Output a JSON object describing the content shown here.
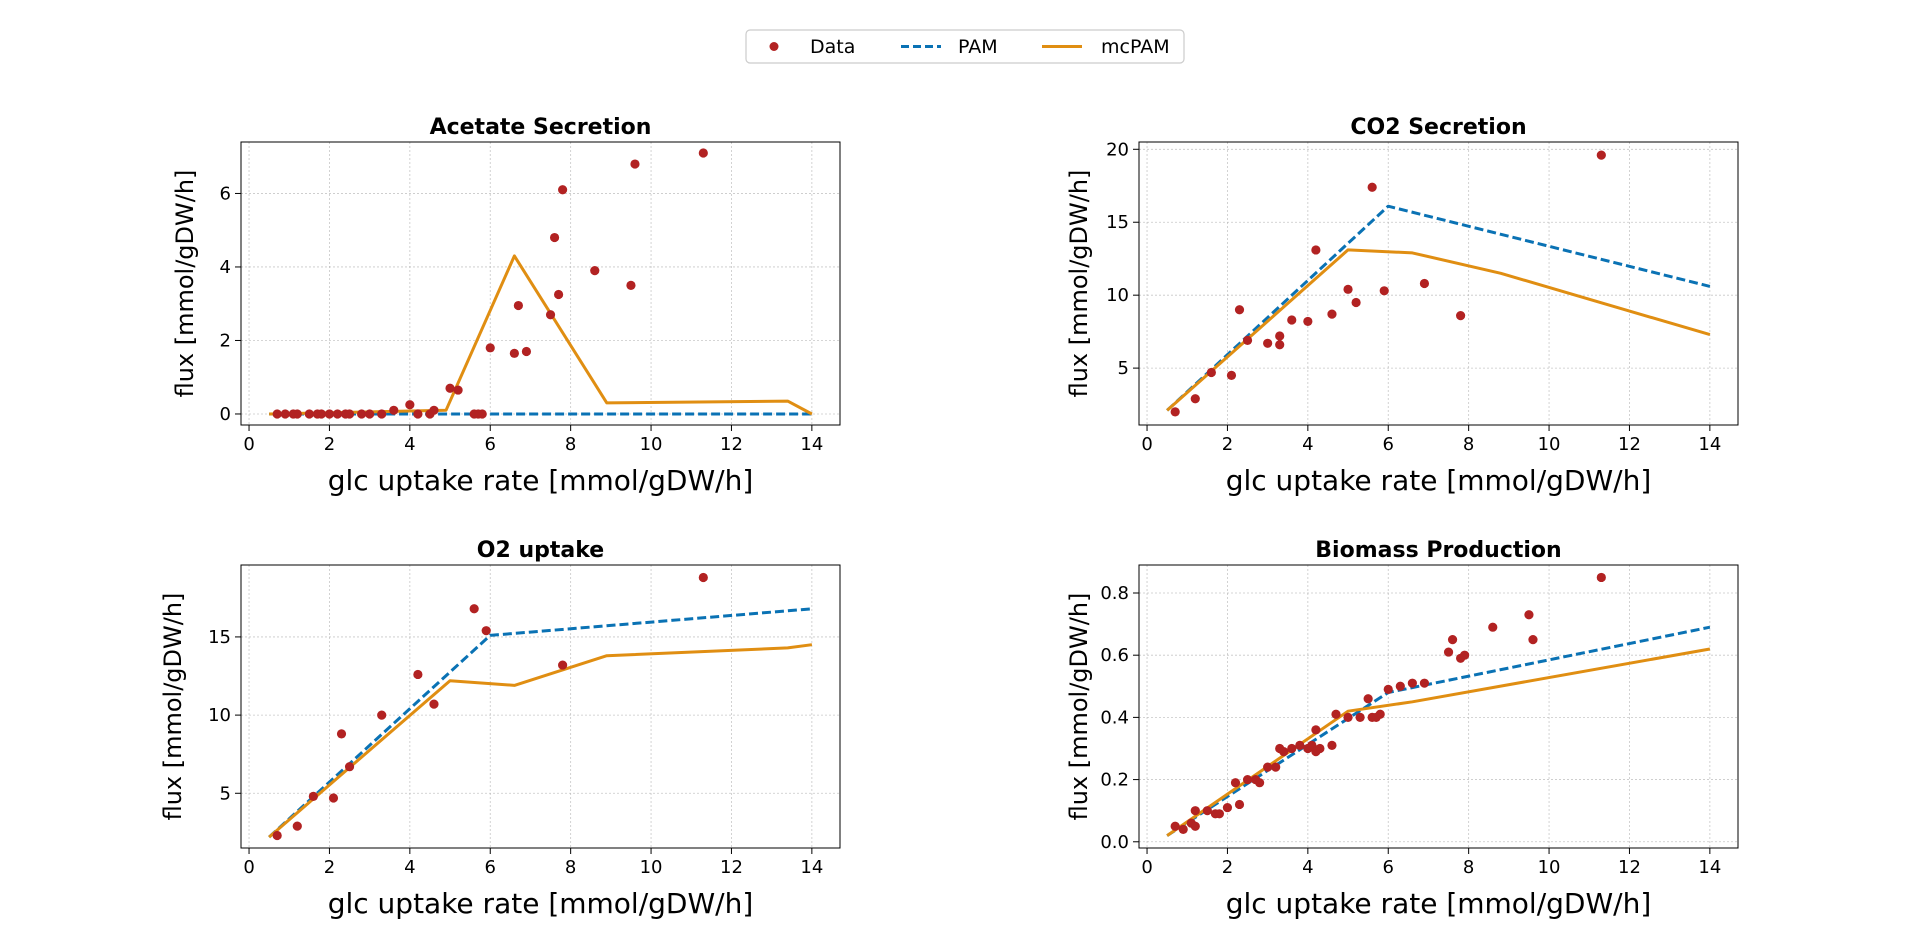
{
  "legend": {
    "entries": [
      {
        "label": "Data",
        "kind": "marker",
        "color": "#b22222"
      },
      {
        "label": "PAM",
        "kind": "dashed",
        "color": "#0a72b4"
      },
      {
        "label": "mcPAM",
        "kind": "solid",
        "color": "#e08e12"
      }
    ],
    "placement": "top-center"
  },
  "colors": {
    "data": "#b22222",
    "pam": "#0a72b4",
    "mcpam": "#e08e12"
  },
  "chart_data": [
    {
      "type": "line",
      "title": "Acetate Secretion",
      "xlabel": "glc uptake rate [mmol/gDW/h]",
      "ylabel": "flux [mmol/gDW/h]",
      "xlim": [
        -0.2,
        14.7
      ],
      "ylim": [
        -0.3,
        7.4
      ],
      "xticks": [
        0,
        2,
        4,
        6,
        8,
        10,
        12,
        14
      ],
      "yticks": [
        0,
        2,
        4,
        6
      ],
      "grid": true,
      "series": [
        {
          "name": "Data",
          "kind": "scatter",
          "x": [
            0.7,
            0.9,
            1.1,
            1.2,
            1.5,
            1.7,
            1.8,
            2.0,
            2.2,
            2.4,
            2.5,
            2.8,
            3.0,
            3.3,
            3.6,
            4.0,
            4.2,
            4.5,
            4.6,
            5.0,
            5.2,
            5.6,
            5.7,
            5.8,
            6.0,
            6.6,
            6.7,
            6.9,
            7.5,
            7.6,
            7.7,
            7.8,
            8.6,
            9.5,
            9.6,
            11.3
          ],
          "y": [
            0,
            0,
            0,
            0,
            0,
            0,
            0,
            0,
            0,
            0,
            0,
            0,
            0,
            0,
            0.1,
            0.25,
            0,
            0,
            0.1,
            0.7,
            0.65,
            0,
            0,
            0,
            1.8,
            1.65,
            2.95,
            1.7,
            2.7,
            4.8,
            3.25,
            6.1,
            3.9,
            3.5,
            6.8,
            7.1
          ]
        },
        {
          "name": "PAM",
          "kind": "dashed",
          "x": [
            0.5,
            14.0
          ],
          "y": [
            0,
            0
          ]
        },
        {
          "name": "mcPAM",
          "kind": "solid",
          "x": [
            0.5,
            4.9,
            6.6,
            8.9,
            13.4,
            14.0
          ],
          "y": [
            0,
            0.1,
            4.3,
            0.3,
            0.35,
            0
          ]
        }
      ]
    },
    {
      "type": "line",
      "title": "CO2 Secretion",
      "xlabel": "glc uptake rate [mmol/gDW/h]",
      "ylabel": "flux [mmol/gDW/h]",
      "xlim": [
        -0.2,
        14.7
      ],
      "ylim": [
        1.1,
        20.5
      ],
      "xticks": [
        0,
        2,
        4,
        6,
        8,
        10,
        12,
        14
      ],
      "yticks": [
        5,
        10,
        15,
        20
      ],
      "grid": true,
      "series": [
        {
          "name": "Data",
          "kind": "scatter",
          "x": [
            0.7,
            1.2,
            1.6,
            2.1,
            2.3,
            2.5,
            3.0,
            3.3,
            3.3,
            3.6,
            4.0,
            4.2,
            4.6,
            5.0,
            5.2,
            5.6,
            5.9,
            6.9,
            7.8,
            11.3
          ],
          "y": [
            2.0,
            2.9,
            4.7,
            4.5,
            9.0,
            6.9,
            6.7,
            7.2,
            6.6,
            8.3,
            8.2,
            13.1,
            8.7,
            10.4,
            9.5,
            17.4,
            10.3,
            10.8,
            8.6,
            19.6
          ]
        },
        {
          "name": "PAM",
          "kind": "dashed",
          "x": [
            0.5,
            6.0,
            14.0
          ],
          "y": [
            2.1,
            16.1,
            10.6
          ]
        },
        {
          "name": "mcPAM",
          "kind": "solid",
          "x": [
            0.5,
            5.0,
            6.6,
            8.8,
            14.0
          ],
          "y": [
            2.1,
            13.1,
            12.9,
            11.5,
            7.3
          ]
        }
      ]
    },
    {
      "type": "line",
      "title": "O2 uptake",
      "xlabel": "glc uptake rate [mmol/gDW/h]",
      "ylabel": "flux [mmol/gDW/h]",
      "xlim": [
        -0.2,
        14.7
      ],
      "ylim": [
        1.5,
        19.6
      ],
      "xticks": [
        0,
        2,
        4,
        6,
        8,
        10,
        12,
        14
      ],
      "yticks": [
        5,
        10,
        15
      ],
      "grid": true,
      "series": [
        {
          "name": "Data",
          "kind": "scatter",
          "x": [
            0.7,
            1.2,
            1.6,
            2.1,
            2.3,
            2.5,
            3.3,
            4.2,
            4.6,
            5.6,
            5.9,
            7.8,
            11.3
          ],
          "y": [
            2.3,
            2.9,
            4.8,
            4.7,
            8.8,
            6.7,
            10.0,
            12.6,
            10.7,
            16.8,
            15.4,
            13.2,
            18.8
          ]
        },
        {
          "name": "PAM",
          "kind": "dashed",
          "x": [
            0.5,
            6.0,
            14.0
          ],
          "y": [
            2.2,
            15.1,
            16.8
          ]
        },
        {
          "name": "mcPAM",
          "kind": "solid",
          "x": [
            0.5,
            5.0,
            6.6,
            8.9,
            13.4,
            14.0
          ],
          "y": [
            2.2,
            12.2,
            11.9,
            13.8,
            14.3,
            14.5
          ]
        }
      ]
    },
    {
      "type": "line",
      "title": "Biomass Production",
      "xlabel": "glc uptake rate [mmol/gDW/h]",
      "ylabel": "flux [mmol/gDW/h]",
      "xlim": [
        -0.2,
        14.7
      ],
      "ylim": [
        -0.02,
        0.89
      ],
      "xticks": [
        0,
        2,
        4,
        6,
        8,
        10,
        12,
        14
      ],
      "yticks": [
        0.0,
        0.2,
        0.4,
        0.6,
        0.8
      ],
      "grid": true,
      "series": [
        {
          "name": "Data",
          "kind": "scatter",
          "x": [
            0.7,
            0.9,
            1.1,
            1.2,
            1.2,
            1.5,
            1.7,
            1.8,
            2.0,
            2.2,
            2.3,
            2.5,
            2.7,
            2.8,
            3.0,
            3.2,
            3.3,
            3.4,
            3.6,
            3.8,
            4.0,
            4.1,
            4.2,
            4.2,
            4.3,
            4.6,
            4.7,
            5.0,
            5.3,
            5.5,
            5.6,
            5.7,
            5.8,
            6.0,
            6.3,
            6.6,
            6.9,
            7.5,
            7.6,
            7.8,
            7.9,
            8.6,
            9.5,
            9.6,
            11.3
          ],
          "y": [
            0.05,
            0.04,
            0.06,
            0.1,
            0.05,
            0.1,
            0.09,
            0.09,
            0.11,
            0.19,
            0.12,
            0.2,
            0.2,
            0.19,
            0.24,
            0.24,
            0.3,
            0.29,
            0.3,
            0.31,
            0.3,
            0.31,
            0.29,
            0.36,
            0.3,
            0.31,
            0.41,
            0.4,
            0.4,
            0.46,
            0.4,
            0.4,
            0.41,
            0.49,
            0.5,
            0.51,
            0.51,
            0.61,
            0.65,
            0.59,
            0.6,
            0.69,
            0.73,
            0.65,
            0.85
          ]
        },
        {
          "name": "PAM",
          "kind": "dashed",
          "x": [
            0.5,
            6.0,
            14.0
          ],
          "y": [
            0.02,
            0.48,
            0.69
          ]
        },
        {
          "name": "mcPAM",
          "kind": "solid",
          "x": [
            0.5,
            5.0,
            6.6,
            14.0
          ],
          "y": [
            0.02,
            0.42,
            0.45,
            0.62
          ]
        }
      ]
    }
  ]
}
